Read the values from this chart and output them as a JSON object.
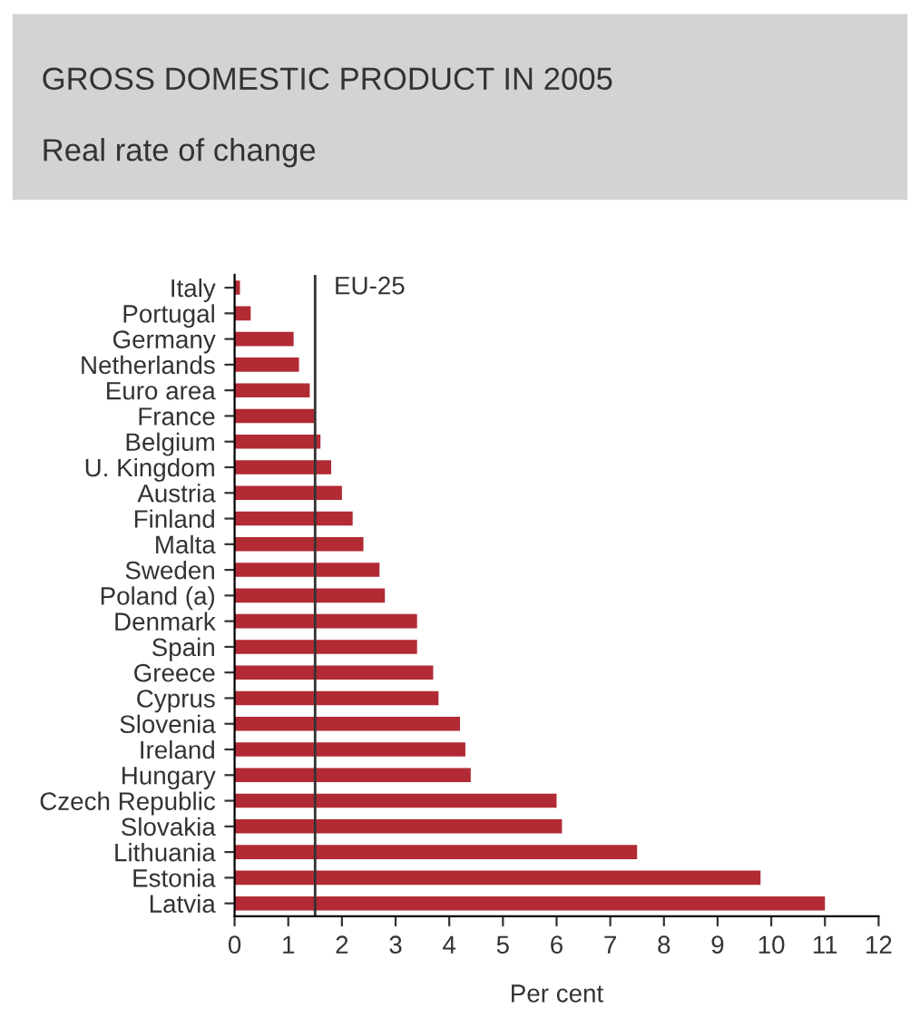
{
  "chart_data": {
    "type": "bar",
    "orientation": "horizontal",
    "title": "GROSS DOMESTIC PRODUCT IN 2005",
    "subtitle": "Real rate of change",
    "xlabel": "Per cent",
    "categories": [
      "Italy",
      "Portugal",
      "Germany",
      "Netherlands",
      "Euro area",
      "France",
      "Belgium",
      "U. Kingdom",
      "Austria",
      "Finland",
      "Malta",
      "Sweden",
      "Poland (a)",
      "Denmark",
      "Spain",
      "Greece",
      "Cyprus",
      "Slovenia",
      "Ireland",
      "Hungary",
      "Czech Republic",
      "Slovakia",
      "Lithuania",
      "Estonia",
      "Latvia"
    ],
    "values": [
      0.1,
      0.3,
      1.1,
      1.2,
      1.4,
      1.5,
      1.6,
      1.8,
      2.0,
      2.2,
      2.4,
      2.7,
      2.8,
      3.4,
      3.4,
      3.7,
      3.8,
      4.2,
      4.3,
      4.4,
      6.0,
      6.1,
      7.5,
      9.8,
      11.0
    ],
    "color": "#b22a33",
    "xlim": [
      0,
      12
    ],
    "xticks": [
      0,
      1,
      2,
      3,
      4,
      5,
      6,
      7,
      8,
      9,
      10,
      11,
      12
    ],
    "ref_lines": [
      {
        "axis": "x",
        "value": 1.5,
        "label": "EU-25",
        "color": "#333333"
      }
    ],
    "grid": false
  }
}
